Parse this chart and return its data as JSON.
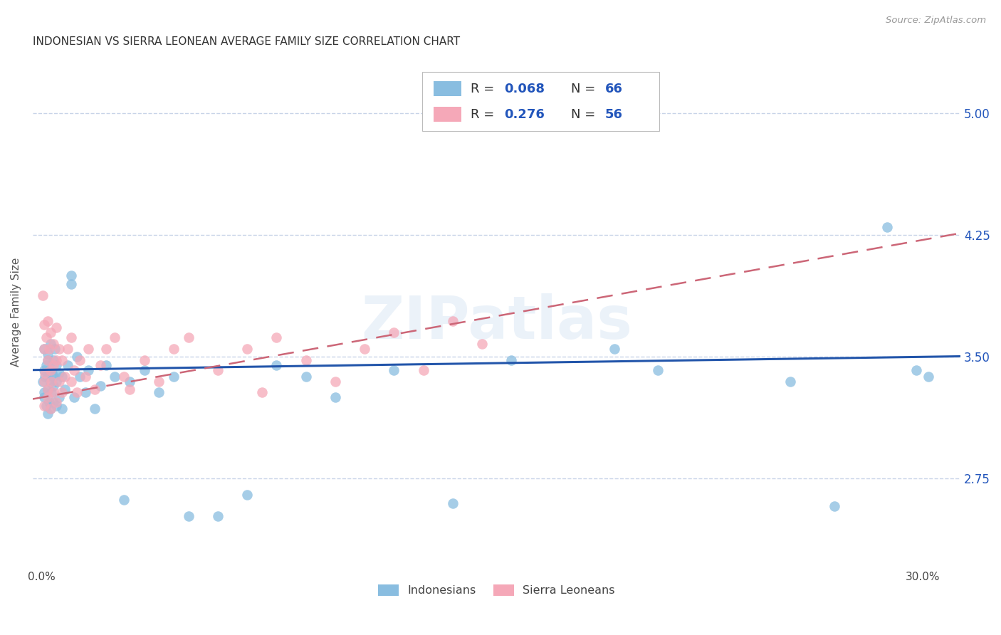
{
  "title": "INDONESIAN VS SIERRA LEONEAN AVERAGE FAMILY SIZE CORRELATION CHART",
  "source": "Source: ZipAtlas.com",
  "ylabel": "Average Family Size",
  "xlabel_ticks": [
    "0.0%",
    "",
    "",
    "",
    "",
    "",
    "30.0%"
  ],
  "xlabel_vals": [
    0.0,
    0.05,
    0.1,
    0.15,
    0.2,
    0.25,
    0.3
  ],
  "yticks": [
    2.75,
    3.5,
    4.25,
    5.0
  ],
  "ylim": [
    2.2,
    5.35
  ],
  "xlim": [
    -0.003,
    0.313
  ],
  "color_blue": "#89bde0",
  "color_pink": "#f5a8b8",
  "color_blue_line": "#2255aa",
  "color_pink_line": "#cc6677",
  "watermark_text": "ZIPatlas",
  "grid_color": "#c8d4e8",
  "right_label_color": "#2255bb",
  "indonesian_x": [
    0.0005,
    0.0008,
    0.001,
    0.001,
    0.001,
    0.0012,
    0.0015,
    0.0015,
    0.002,
    0.002,
    0.002,
    0.002,
    0.0022,
    0.0025,
    0.003,
    0.003,
    0.003,
    0.003,
    0.0032,
    0.0035,
    0.004,
    0.004,
    0.004,
    0.004,
    0.0045,
    0.005,
    0.005,
    0.005,
    0.006,
    0.006,
    0.007,
    0.007,
    0.008,
    0.009,
    0.01,
    0.01,
    0.011,
    0.012,
    0.013,
    0.015,
    0.016,
    0.018,
    0.02,
    0.022,
    0.025,
    0.028,
    0.03,
    0.035,
    0.04,
    0.045,
    0.05,
    0.06,
    0.07,
    0.08,
    0.09,
    0.1,
    0.12,
    0.14,
    0.16,
    0.195,
    0.21,
    0.255,
    0.27,
    0.288,
    0.298,
    0.302
  ],
  "indonesian_y": [
    3.35,
    3.28,
    3.42,
    3.55,
    3.25,
    3.38,
    3.2,
    3.45,
    3.3,
    3.48,
    3.15,
    3.38,
    3.52,
    3.22,
    3.35,
    3.18,
    3.42,
    3.58,
    3.28,
    3.4,
    3.32,
    3.48,
    3.22,
    3.38,
    3.55,
    3.2,
    3.35,
    3.45,
    3.25,
    3.4,
    3.18,
    3.38,
    3.3,
    3.45,
    4.0,
    3.95,
    3.25,
    3.5,
    3.38,
    3.28,
    3.42,
    3.18,
    3.32,
    3.45,
    3.38,
    3.22,
    3.35,
    3.42,
    3.28,
    3.38,
    3.45,
    3.32,
    3.28,
    3.45,
    3.38,
    3.25,
    3.42,
    3.35,
    3.48,
    3.55,
    3.42,
    3.35,
    3.28,
    4.3,
    3.42,
    3.38
  ],
  "indonesian_y_outliers": {
    "idx_low1": 50,
    "idx_low2": 51,
    "val_low": 2.52,
    "idx_vlow1": 62,
    "val_vlow1": 2.58,
    "idx_mid1": 52,
    "val_mid1": 2.65,
    "idx_below1": 45,
    "val_below1": 2.62,
    "idx_below2": 57,
    "val_below2": 2.6
  },
  "sierraleone_x": [
    0.0005,
    0.0008,
    0.001,
    0.001,
    0.001,
    0.0012,
    0.0015,
    0.002,
    0.002,
    0.002,
    0.0022,
    0.0025,
    0.003,
    0.003,
    0.003,
    0.0032,
    0.004,
    0.004,
    0.004,
    0.005,
    0.005,
    0.005,
    0.006,
    0.006,
    0.007,
    0.007,
    0.008,
    0.009,
    0.01,
    0.01,
    0.011,
    0.012,
    0.013,
    0.015,
    0.016,
    0.018,
    0.02,
    0.022,
    0.025,
    0.028,
    0.03,
    0.035,
    0.04,
    0.045,
    0.05,
    0.06,
    0.07,
    0.075,
    0.08,
    0.09,
    0.1,
    0.11,
    0.12,
    0.13,
    0.14,
    0.15
  ],
  "sierraleone_y": [
    3.88,
    3.35,
    3.2,
    3.55,
    3.7,
    3.4,
    3.62,
    3.25,
    3.48,
    3.72,
    3.3,
    3.55,
    3.18,
    3.42,
    3.65,
    3.35,
    3.58,
    3.28,
    3.45,
    3.22,
    3.48,
    3.68,
    3.35,
    3.55,
    3.28,
    3.48,
    3.38,
    3.55,
    3.35,
    3.62,
    3.42,
    3.28,
    3.48,
    3.38,
    3.55,
    3.3,
    3.45,
    3.55,
    3.62,
    3.38,
    3.3,
    3.48,
    3.35,
    3.55,
    3.62,
    3.42,
    3.55,
    3.28,
    3.62,
    3.48,
    3.35,
    3.55,
    3.65,
    3.42,
    3.72,
    3.58
  ]
}
